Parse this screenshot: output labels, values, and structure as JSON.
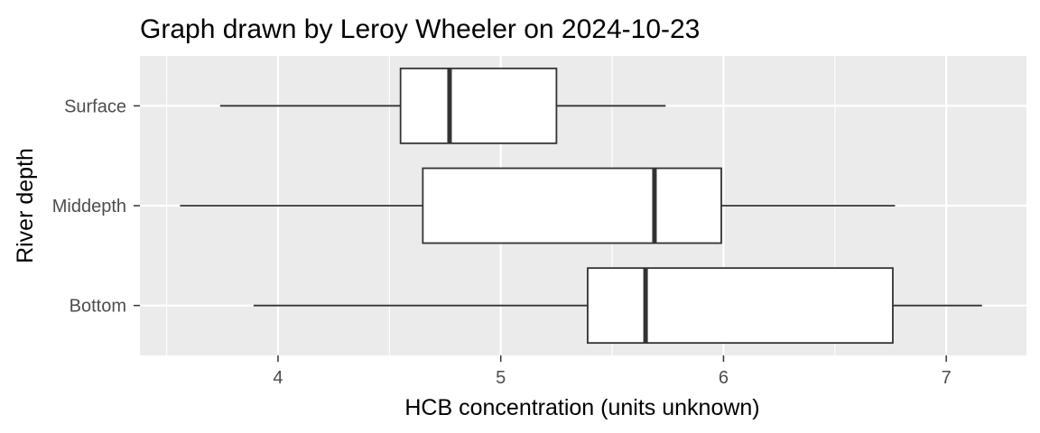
{
  "chart_data": {
    "type": "boxplot",
    "orientation": "horizontal",
    "title": "Graph drawn by Leroy Wheeler on 2024-10-23",
    "xlabel": "HCB concentration (units unknown)",
    "ylabel": "River depth",
    "xlim": [
      3.38,
      7.36
    ],
    "xticks": [
      4,
      5,
      6,
      7
    ],
    "x_minor_gridlines": [
      3.5,
      4.5,
      5.5,
      6.5
    ],
    "grid": true,
    "legend": "none",
    "categories": [
      "Surface",
      "Middepth",
      "Bottom"
    ],
    "boxes": [
      {
        "category": "Surface",
        "min": 3.74,
        "q1": 4.55,
        "median": 4.77,
        "q3": 5.25,
        "max": 5.74
      },
      {
        "category": "Middepth",
        "min": 3.56,
        "q1": 4.65,
        "median": 5.69,
        "q3": 5.99,
        "max": 6.77
      },
      {
        "category": "Bottom",
        "min": 3.89,
        "q1": 5.39,
        "median": 5.65,
        "q3": 6.76,
        "max": 7.16
      }
    ],
    "colors": {
      "panel_background": "#ebebeb",
      "grid_major": "#ffffff",
      "box_fill": "#ffffff",
      "box_stroke": "#333333",
      "tick_mark": "#333333",
      "tick_label": "#4d4d4d"
    }
  }
}
